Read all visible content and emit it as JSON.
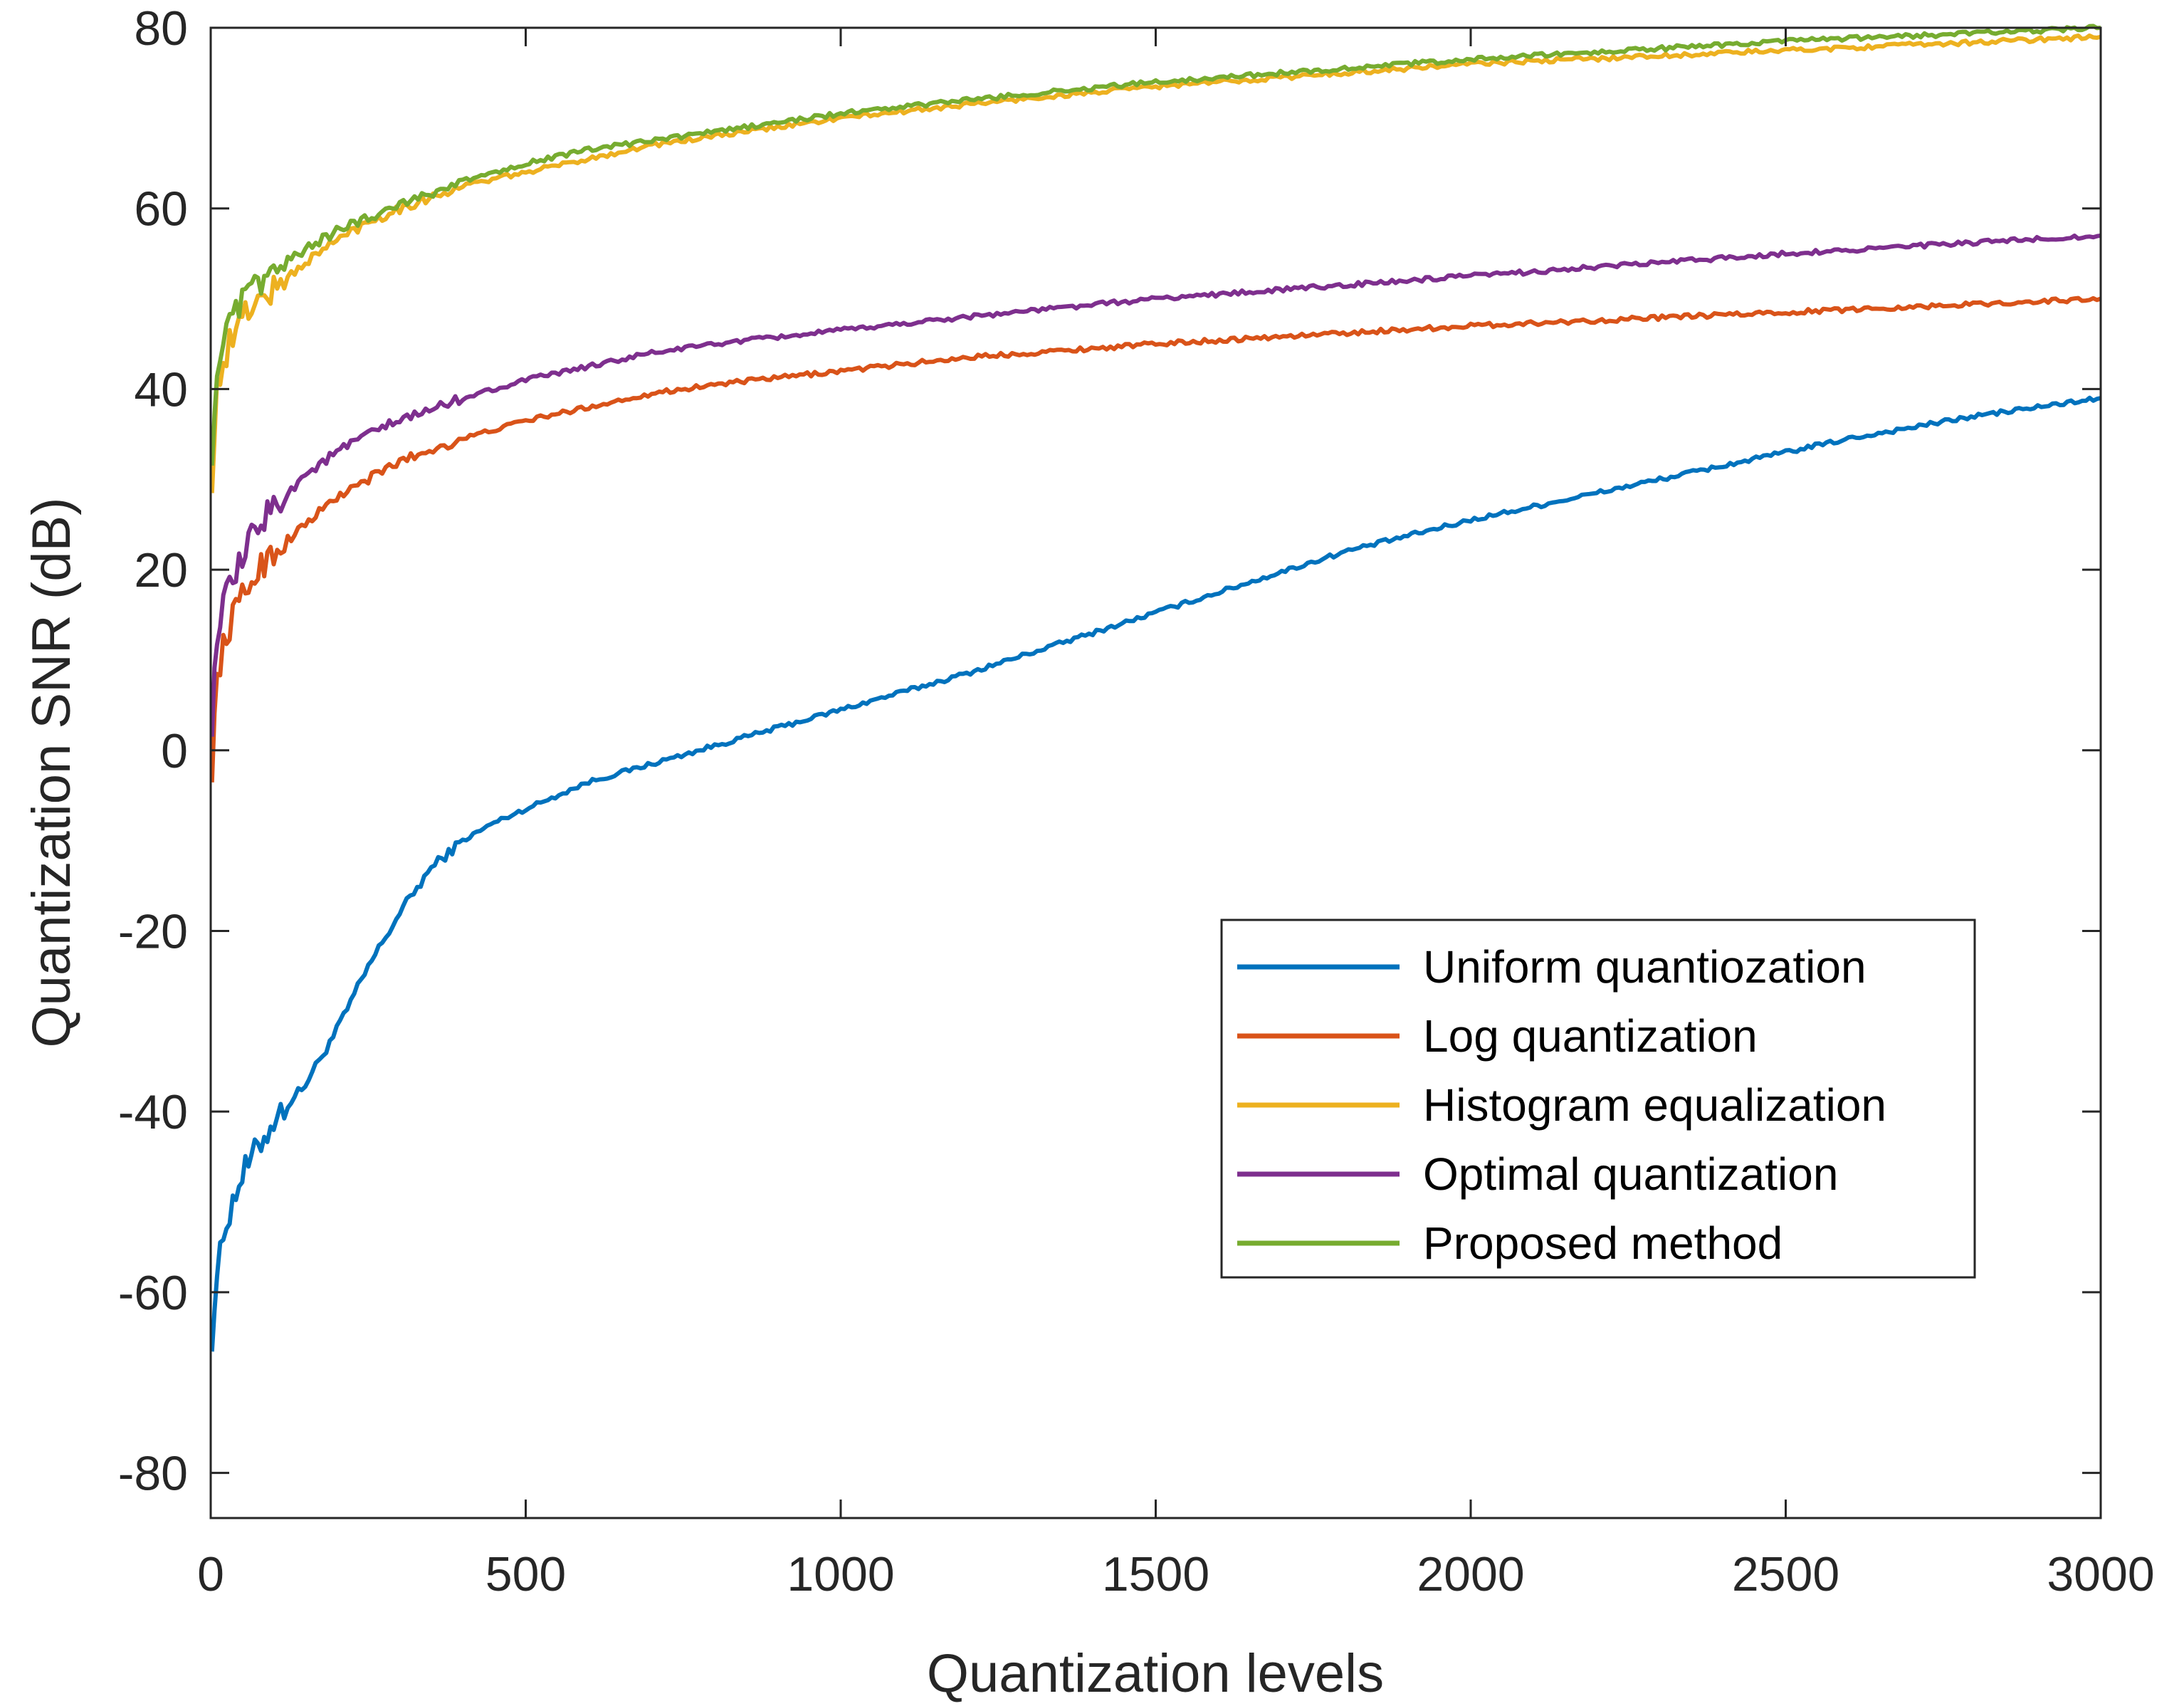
{
  "chart_data": {
    "type": "line",
    "title": "",
    "xlabel": "Quantization levels",
    "ylabel": "Quantization SNR (dB)",
    "xlim": [
      0,
      3000
    ],
    "ylim": [
      -85,
      80
    ],
    "xticks": [
      0,
      500,
      1000,
      1500,
      2000,
      2500,
      3000
    ],
    "xtick_labels": [
      "0",
      "500",
      "1000",
      "1500",
      "2000",
      "2500",
      "3000"
    ],
    "yticks": [
      80,
      60,
      40,
      20,
      0,
      -20,
      -40,
      -60,
      -80
    ],
    "ytick_labels": [
      "80",
      "60",
      "40",
      "20",
      "0",
      "-20",
      "-40",
      "-60",
      "-80"
    ],
    "grid": false,
    "legend_position": "lower-right",
    "series": [
      {
        "name": "Uniform quantiozation",
        "color": "#0072BD",
        "x": [
          2,
          10,
          25,
          50,
          75,
          100,
          150,
          200,
          250,
          300,
          350,
          400,
          450,
          500,
          600,
          700,
          800,
          900,
          1000,
          1200,
          1400,
          1600,
          1800,
          2000,
          2200,
          2400,
          2600,
          2800,
          3000
        ],
        "y": [
          -65,
          -58,
          -52,
          -47,
          -44,
          -41,
          -37,
          -31,
          -24,
          -18,
          -13,
          -10,
          -8,
          -6.5,
          -3.5,
          -1.5,
          0.5,
          2.5,
          4.5,
          8.5,
          13,
          17.5,
          22,
          25.5,
          28.5,
          31.5,
          34.5,
          37,
          39
        ]
      },
      {
        "name": "Log quantization",
        "color": "#D95319",
        "x": [
          2,
          10,
          25,
          50,
          75,
          100,
          150,
          200,
          250,
          300,
          400,
          500,
          600,
          700,
          800,
          1000,
          1200,
          1500,
          2000,
          2500,
          3000
        ],
        "y": [
          -2,
          8,
          13,
          17,
          20,
          22,
          25,
          28,
          30,
          32,
          34.5,
          36.5,
          38,
          39.5,
          40.5,
          42,
          43.5,
          45,
          47,
          48.5,
          50
        ]
      },
      {
        "name": "Histogram equalization",
        "color": "#EDB120",
        "x": [
          2,
          10,
          20,
          30,
          45,
          60,
          80,
          100,
          150,
          200,
          250,
          300,
          400,
          500,
          600,
          700,
          800,
          1000,
          1200,
          1500,
          1800,
          2000,
          2500,
          3000
        ],
        "y": [
          30,
          40,
          43,
          45,
          47,
          49,
          50,
          51,
          54,
          56.5,
          58.5,
          60,
          62.5,
          64,
          65.5,
          67,
          68,
          70,
          71.5,
          73.5,
          75,
          76,
          77.5,
          79
        ]
      },
      {
        "name": "Optimal quantization",
        "color": "#7E2F8E",
        "x": [
          2,
          10,
          25,
          50,
          75,
          100,
          150,
          200,
          250,
          300,
          400,
          500,
          600,
          700,
          800,
          1000,
          1200,
          1500,
          2000,
          2500,
          3000
        ],
        "y": [
          3,
          13,
          17,
          21,
          25,
          27,
          30.5,
          33,
          35,
          36.5,
          39,
          41,
          42.5,
          44,
          45,
          46.5,
          48,
          50,
          52.5,
          55,
          57
        ]
      },
      {
        "name": "Proposed method",
        "color": "#77AC30",
        "x": [
          2,
          10,
          20,
          30,
          45,
          60,
          80,
          100,
          150,
          200,
          250,
          300,
          400,
          500,
          600,
          700,
          800,
          1000,
          1200,
          1500,
          1800,
          2000,
          2500,
          3000
        ],
        "y": [
          33,
          42,
          45,
          47,
          49,
          50.5,
          52,
          53,
          55.5,
          57.5,
          59,
          60.5,
          63,
          65,
          66.5,
          67.5,
          68.5,
          70.5,
          72,
          74,
          75.5,
          76.5,
          78.5,
          80
        ]
      }
    ]
  }
}
